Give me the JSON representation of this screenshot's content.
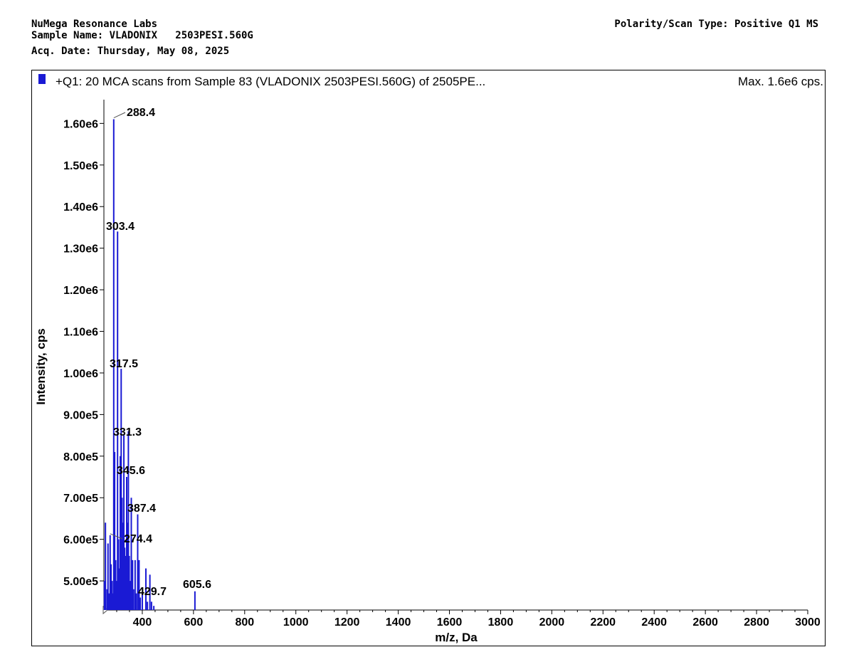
{
  "header": {
    "lab_name": "NuMega Resonance Labs",
    "sample_line": "Sample Name: VLADONIX   2503PESI.560G",
    "acq_date": "Acq. Date: Thursday, May 08, 2025",
    "polarity": "Polarity/Scan Type: Positive Q1 MS"
  },
  "chart_data": {
    "type": "bar",
    "title": "+Q1: 20 MCA scans from Sample 83 (VLADONIX   2503PESI.560G) of 2505PE...",
    "max_label": "Max. 1.6e6 cps.",
    "xlabel": "m/z, Da",
    "ylabel": "Intensity, cps",
    "xlim": [
      250,
      3000
    ],
    "ylim": [
      430000,
      1640000
    ],
    "x_ticks": [
      400,
      600,
      800,
      1000,
      1200,
      1400,
      1600,
      1800,
      2000,
      2200,
      2400,
      2600,
      2800,
      3000
    ],
    "y_ticks": [
      {
        "value": 500000,
        "label": "5.00e5"
      },
      {
        "value": 600000,
        "label": "6.00e5"
      },
      {
        "value": 700000,
        "label": "7.00e5"
      },
      {
        "value": 800000,
        "label": "8.00e5"
      },
      {
        "value": 900000,
        "label": "9.00e5"
      },
      {
        "value": 1000000,
        "label": "1.00e6"
      },
      {
        "value": 1100000,
        "label": "1.10e6"
      },
      {
        "value": 1200000,
        "label": "1.20e6"
      },
      {
        "value": 1300000,
        "label": "1.30e6"
      },
      {
        "value": 1400000,
        "label": "1.40e6"
      },
      {
        "value": 1500000,
        "label": "1.50e6"
      },
      {
        "value": 1600000,
        "label": "1.60e6"
      }
    ],
    "series_color": "#1a1ad4",
    "peaks": [
      {
        "x": 252,
        "y": 500000
      },
      {
        "x": 256,
        "y": 640000
      },
      {
        "x": 262,
        "y": 480000
      },
      {
        "x": 266,
        "y": 590000
      },
      {
        "x": 270,
        "y": 470000
      },
      {
        "x": 274.4,
        "y": 610000
      },
      {
        "x": 278,
        "y": 540000
      },
      {
        "x": 282,
        "y": 500000
      },
      {
        "x": 286,
        "y": 470000
      },
      {
        "x": 288.4,
        "y": 1610000
      },
      {
        "x": 292,
        "y": 810000
      },
      {
        "x": 296,
        "y": 550000
      },
      {
        "x": 300,
        "y": 500000
      },
      {
        "x": 303.4,
        "y": 1340000
      },
      {
        "x": 307,
        "y": 600000
      },
      {
        "x": 310,
        "y": 530000
      },
      {
        "x": 314,
        "y": 800000
      },
      {
        "x": 317.5,
        "y": 1010000
      },
      {
        "x": 321,
        "y": 700000
      },
      {
        "x": 325,
        "y": 640000
      },
      {
        "x": 328,
        "y": 850000
      },
      {
        "x": 331.3,
        "y": 580000
      },
      {
        "x": 335,
        "y": 560000
      },
      {
        "x": 339,
        "y": 750000
      },
      {
        "x": 342,
        "y": 640000
      },
      {
        "x": 345.6,
        "y": 860000
      },
      {
        "x": 349,
        "y": 560000
      },
      {
        "x": 353,
        "y": 500000
      },
      {
        "x": 357,
        "y": 700000
      },
      {
        "x": 362,
        "y": 550000
      },
      {
        "x": 366,
        "y": 480000
      },
      {
        "x": 372,
        "y": 550000
      },
      {
        "x": 376,
        "y": 470000
      },
      {
        "x": 382,
        "y": 660000
      },
      {
        "x": 387.4,
        "y": 550000
      },
      {
        "x": 392,
        "y": 460000
      },
      {
        "x": 400,
        "y": 470000
      },
      {
        "x": 414,
        "y": 530000
      },
      {
        "x": 420,
        "y": 450000
      },
      {
        "x": 429.7,
        "y": 515000
      },
      {
        "x": 436,
        "y": 450000
      },
      {
        "x": 445,
        "y": 440000
      },
      {
        "x": 605.6,
        "y": 475000
      }
    ],
    "peak_labels": [
      {
        "x": 288.4,
        "label": "288.4"
      },
      {
        "x": 303.4,
        "label": "303.4"
      },
      {
        "x": 317.5,
        "label": "317.5"
      },
      {
        "x": 331.3,
        "label": "331.3"
      },
      {
        "x": 345.6,
        "label": "345.6"
      },
      {
        "x": 387.4,
        "label": "387.4"
      },
      {
        "x": 274.4,
        "label": "274.4"
      },
      {
        "x": 429.7,
        "label": "429.7"
      },
      {
        "x": 605.6,
        "label": "605.6"
      }
    ]
  }
}
